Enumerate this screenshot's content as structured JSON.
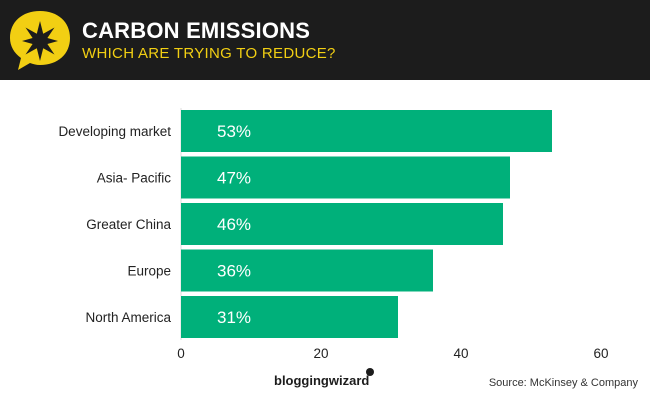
{
  "header": {
    "title": "CARBON EMISSIONS",
    "subtitle": "WHICH ARE TRYING TO REDUCE?",
    "logo_icon": "star-speech-bubble-icon"
  },
  "colors": {
    "header_bg": "#1c1c1c",
    "accent_yellow": "#f2cf13",
    "bar": "#00b07a"
  },
  "chart_data": {
    "type": "bar",
    "orientation": "horizontal",
    "categories": [
      "Developing market",
      "Asia- Pacific",
      "Greater China",
      "Europe",
      "North America"
    ],
    "values": [
      53,
      47,
      46,
      36,
      31
    ],
    "data_labels": [
      "53%",
      "47%",
      "46%",
      "36%",
      "31%"
    ],
    "xlim": [
      0,
      60
    ],
    "xticks": [
      0,
      20,
      40,
      60
    ],
    "grid": false,
    "title": "",
    "xlabel": "",
    "ylabel": ""
  },
  "footer": {
    "brand": "bloggingwizard",
    "source": "Source: McKinsey & Company"
  }
}
